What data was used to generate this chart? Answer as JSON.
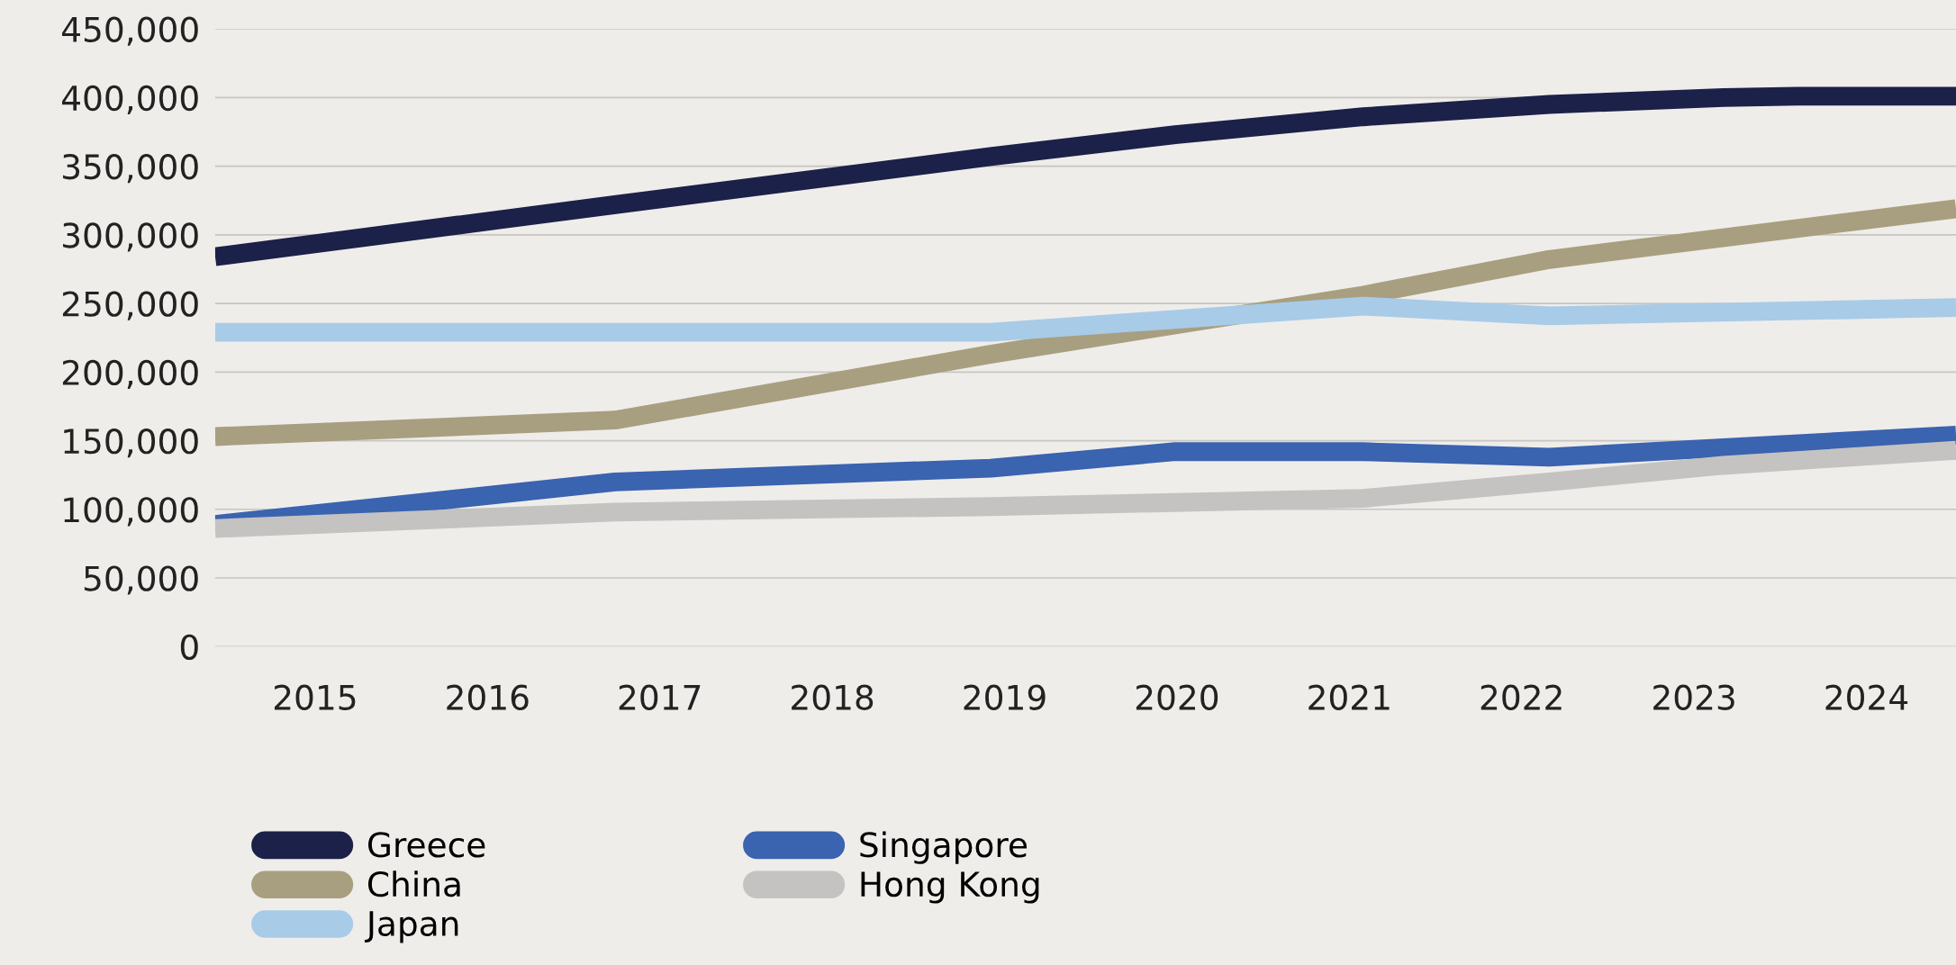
{
  "chart_data": {
    "type": "line",
    "xlim": [
      2014.42,
      2024.52
    ],
    "xticks": [
      2015,
      2016,
      2017,
      2018,
      2019,
      2020,
      2021,
      2022,
      2023,
      2024
    ],
    "ylim": [
      0,
      450000
    ],
    "yticks": [
      {
        "value": 0,
        "label": "0"
      },
      {
        "value": 50000,
        "label": "50,000"
      },
      {
        "value": 100000,
        "label": "100,000"
      },
      {
        "value": 150000,
        "label": "150,000"
      },
      {
        "value": 200000,
        "label": "200,000"
      },
      {
        "value": 250000,
        "label": "250,000"
      },
      {
        "value": 300000,
        "label": "300,000"
      },
      {
        "value": 350000,
        "label": "350,000"
      },
      {
        "value": 400000,
        "label": "400,000"
      },
      {
        "value": 450000,
        "label": "450,000"
      }
    ],
    "grid": "y",
    "legend": "bottom",
    "marker": "none",
    "line_style": "solid",
    "series": [
      {
        "name": "Greece",
        "color": "#1b2148",
        "x": [
          2014.42,
          2016.74,
          2018.92,
          2019.99,
          2021.08,
          2022.16,
          2023.17,
          2023.6,
          2024.52
        ],
        "values": [
          284000,
          322000,
          357000,
          373000,
          386000,
          395000,
          400000,
          401000,
          401000
        ]
      },
      {
        "name": "China",
        "color": "#a89f80",
        "x": [
          2014.42,
          2016.74,
          2018.92,
          2021.08,
          2022.16,
          2024.52
        ],
        "values": [
          153000,
          165000,
          213000,
          256000,
          282000,
          319000
        ]
      },
      {
        "name": "Japan",
        "color": "#a8cbe8",
        "x": [
          2014.42,
          2018.92,
          2021.08,
          2022.16,
          2024.52
        ],
        "values": [
          229000,
          229000,
          248000,
          241000,
          247000
        ]
      },
      {
        "name": "Singapore",
        "color": "#3a63b0",
        "x": [
          2014.42,
          2016.74,
          2018.92,
          2019.99,
          2021.08,
          2022.16,
          2024.52
        ],
        "values": [
          89000,
          120000,
          130000,
          142000,
          142000,
          138000,
          154000
        ]
      },
      {
        "name": "Hong Kong",
        "color": "#c4c3c1",
        "x": [
          2014.42,
          2016.74,
          2018.92,
          2021.08,
          2022.16,
          2023.17,
          2024.52
        ],
        "values": [
          86000,
          98000,
          102000,
          108000,
          120000,
          132000,
          143000
        ]
      }
    ]
  }
}
